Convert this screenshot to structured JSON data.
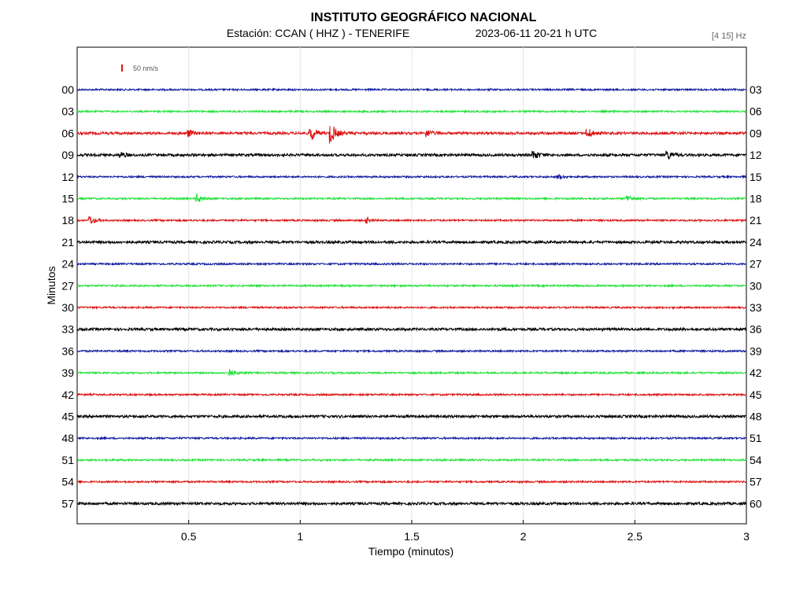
{
  "header": {
    "institution": "INSTITUTO GEOGRÁFICO NACIONAL",
    "station": "Estación:  CCAN ( HHZ ) - TENERIFE",
    "datetime": "2023-06-11  20-21 h UTC",
    "filter": "[4 15] Hz"
  },
  "chart_data": {
    "type": "line",
    "xlabel": "Tiempo (minutos)",
    "ylabel": "Minutos",
    "xlim": [
      0,
      3
    ],
    "x_ticks": [
      "0.5",
      "1",
      "1.5",
      "2",
      "2.5",
      "3"
    ],
    "x_tick_values": [
      0.5,
      1,
      1.5,
      2,
      2.5,
      3
    ],
    "left_labels": [
      "00",
      "03",
      "06",
      "09",
      "12",
      "15",
      "18",
      "21",
      "24",
      "27",
      "30",
      "33",
      "36",
      "39",
      "42",
      "45",
      "48",
      "51",
      "54",
      "57"
    ],
    "right_labels": [
      "03",
      "06",
      "09",
      "12",
      "15",
      "18",
      "21",
      "24",
      "27",
      "30",
      "33",
      "36",
      "39",
      "42",
      "45",
      "48",
      "51",
      "54",
      "57",
      "60"
    ],
    "trace_colors": [
      "#0c1a9e",
      "#22e03a",
      "#dd1111",
      "#000000"
    ],
    "scale_bar": {
      "label": "50 nm/s",
      "color": "#dd1111"
    },
    "grid": true,
    "events": [
      {
        "row": 2,
        "t": 1.05,
        "amp": 9
      },
      {
        "row": 2,
        "t": 1.14,
        "amp": 12
      },
      {
        "row": 2,
        "t": 2.29,
        "amp": 6
      },
      {
        "row": 2,
        "t": 1.57,
        "amp": 4
      },
      {
        "row": 2,
        "t": 0.5,
        "amp": 4
      },
      {
        "row": 3,
        "t": 2.65,
        "amp": 5
      },
      {
        "row": 3,
        "t": 2.05,
        "amp": 5
      },
      {
        "row": 3,
        "t": 0.2,
        "amp": 3
      },
      {
        "row": 4,
        "t": 2.16,
        "amp": 3
      },
      {
        "row": 5,
        "t": 0.54,
        "amp": 5
      },
      {
        "row": 5,
        "t": 2.47,
        "amp": 4
      },
      {
        "row": 6,
        "t": 0.06,
        "amp": 5
      },
      {
        "row": 6,
        "t": 1.3,
        "amp": 3
      },
      {
        "row": 13,
        "t": 0.69,
        "amp": 4
      }
    ]
  }
}
